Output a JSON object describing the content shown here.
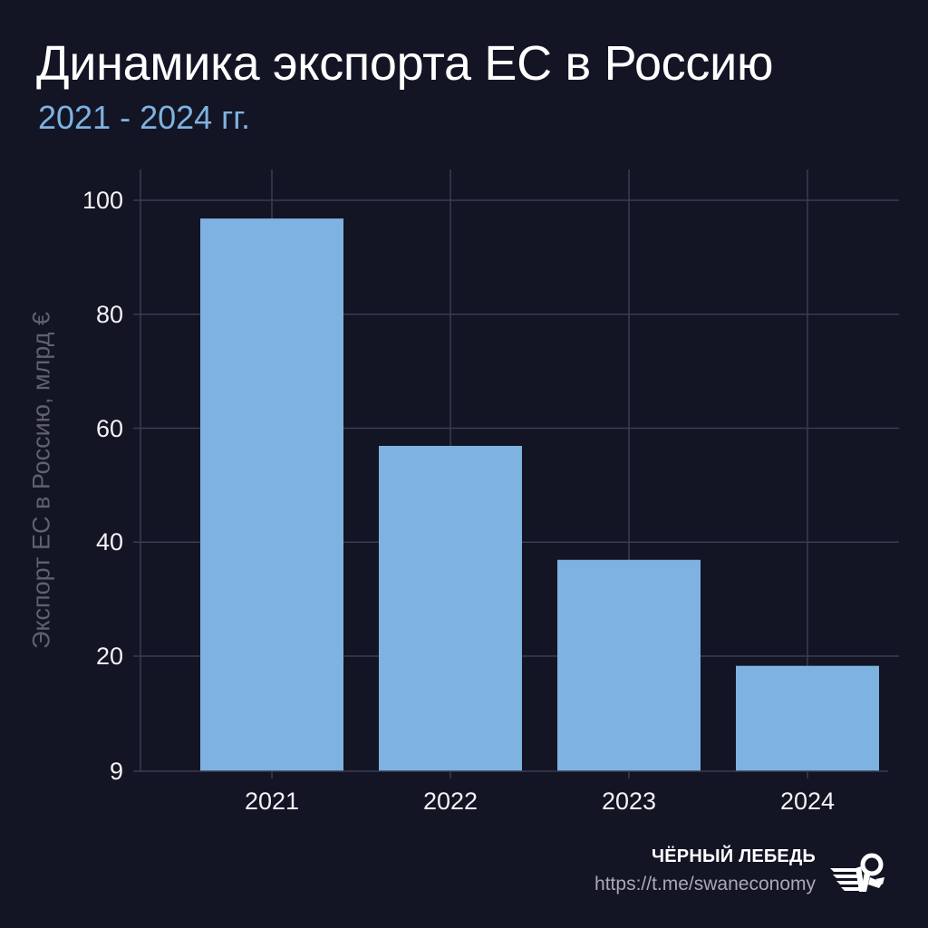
{
  "header": {
    "title": "Динамика экспорта ЕС в Россию",
    "subtitle": "2021 - 2024 гг."
  },
  "footer": {
    "brand_name": "ЧЁРНЫЙ ЛЕБЕДЬ",
    "brand_url": "https://t.me/swaneconomy",
    "logo_icon": "swan-logo-icon"
  },
  "colors": {
    "background": "#131424",
    "bar": "#7eb2e0",
    "subtitle": "#7eb2e0",
    "grid": "#3a3c52",
    "axis_label": "#5f6070",
    "tick_label": "#f2f2f5"
  },
  "chart_data": {
    "type": "bar",
    "title": "Динамика экспорта ЕС в Россию",
    "subtitle": "2021 - 2024 гг.",
    "xlabel": "",
    "ylabel": "Экспорт ЕС в Россию, млрд €",
    "categories": [
      "2021",
      "2022",
      "2023",
      "2024"
    ],
    "values": [
      96.8,
      56.9,
      36.9,
      18.3
    ],
    "yticks": [
      9,
      20,
      40,
      60,
      80,
      100
    ],
    "ytick_labels": [
      "9",
      "20",
      "40",
      "60",
      "80",
      "100"
    ],
    "ylim": [
      0,
      105
    ],
    "grid": true,
    "legend": null
  }
}
